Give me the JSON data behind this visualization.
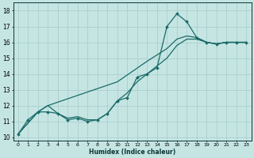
{
  "xlabel": "Humidex (Indice chaleur)",
  "bg_color": "#c5e5e3",
  "grid_color": "#aacfcd",
  "line_color": "#1a6b68",
  "xlim": [
    -0.5,
    23.5
  ],
  "ylim": [
    9.8,
    18.5
  ],
  "xticks": [
    0,
    1,
    2,
    3,
    4,
    5,
    6,
    7,
    8,
    9,
    10,
    11,
    12,
    13,
    14,
    15,
    16,
    17,
    18,
    19,
    20,
    21,
    22,
    23
  ],
  "yticks": [
    10,
    11,
    12,
    13,
    14,
    15,
    16,
    17,
    18
  ],
  "line1_x": [
    0,
    1,
    2,
    3,
    4,
    5,
    6,
    7,
    8,
    9,
    10,
    11,
    12,
    13,
    14,
    15,
    16,
    17,
    18,
    19,
    20,
    21,
    22,
    23
  ],
  "line1_y": [
    10.2,
    11.1,
    11.6,
    11.6,
    11.5,
    11.1,
    11.2,
    11.0,
    11.1,
    11.5,
    12.3,
    12.5,
    13.8,
    14.0,
    14.4,
    17.0,
    17.8,
    17.3,
    16.3,
    16.0,
    15.9,
    16.0,
    16.0,
    16.0
  ],
  "line2_x": [
    0,
    2,
    3,
    10,
    13,
    14,
    15,
    16,
    17,
    18,
    19,
    20,
    21,
    22,
    23
  ],
  "line2_y": [
    10.2,
    11.6,
    12.0,
    13.5,
    14.8,
    15.2,
    15.6,
    16.2,
    16.4,
    16.3,
    16.0,
    15.9,
    16.0,
    16.0,
    16.0
  ],
  "line3_x": [
    0,
    2,
    3,
    4,
    5,
    6,
    7,
    8,
    9,
    10,
    11,
    12,
    13,
    14,
    15,
    16,
    17,
    18,
    19,
    20,
    21,
    22,
    23
  ],
  "line3_y": [
    10.2,
    11.6,
    12.0,
    11.5,
    11.2,
    11.3,
    11.1,
    11.1,
    11.5,
    12.3,
    12.8,
    13.5,
    14.0,
    14.5,
    15.0,
    15.8,
    16.2,
    16.2,
    16.0,
    15.9,
    16.0,
    16.0,
    16.0
  ]
}
